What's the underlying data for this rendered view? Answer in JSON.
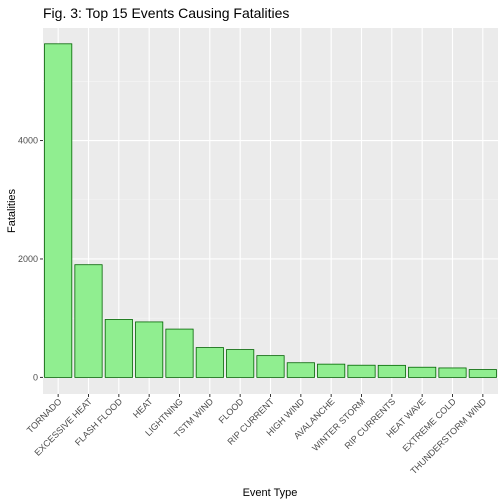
{
  "colors": {
    "panel_background": "#ebebeb",
    "grid_major": "#ffffff",
    "grid_minor": "#f5f5f5",
    "bar_fill": "#90ee90",
    "bar_stroke": "#006400",
    "tick_text": "#4d4d4d"
  },
  "chart_data": {
    "type": "bar",
    "title": "Fig. 3: Top 15 Events Causing Fatalities",
    "xlabel": "Event Type",
    "ylabel": "Fatalities",
    "categories": [
      "TORNADO",
      "EXCESSIVE HEAT",
      "FLASH FLOOD",
      "HEAT",
      "LIGHTNING",
      "TSTM WIND",
      "FLOOD",
      "RIP CURRENT",
      "HIGH WIND",
      "AVALANCHE",
      "WINTER STORM",
      "RIP CURRENTS",
      "HEAT WAVE",
      "EXTREME COLD",
      "THUNDERSTORM WIND"
    ],
    "values": [
      5633,
      1903,
      978,
      937,
      816,
      504,
      470,
      368,
      248,
      224,
      206,
      204,
      172,
      160,
      133
    ],
    "ylim": [
      -280,
      5900
    ],
    "yticks": [
      0,
      2000,
      4000
    ],
    "grid": true,
    "legend": "none"
  }
}
